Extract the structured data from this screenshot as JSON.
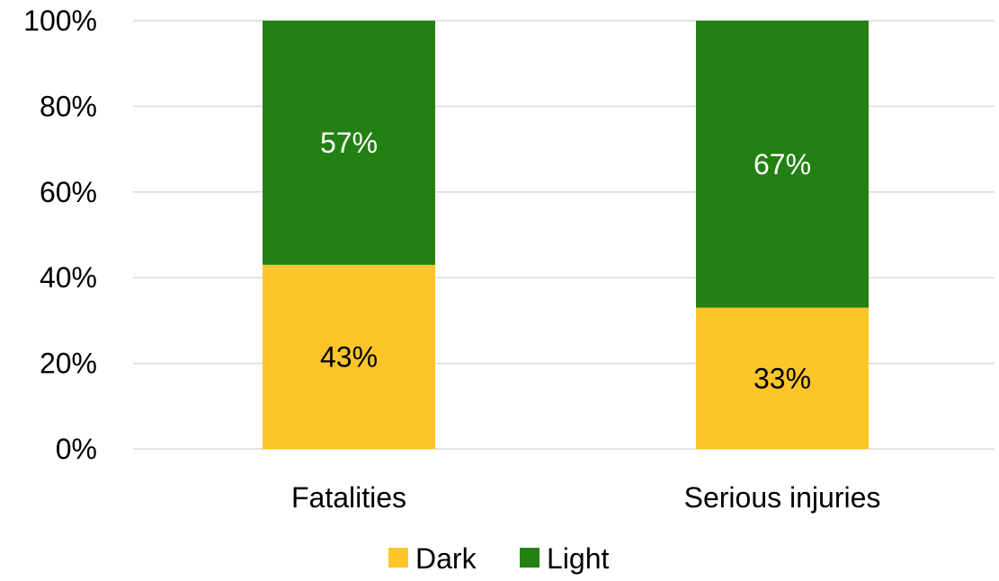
{
  "chart_data": {
    "type": "bar",
    "stacked": true,
    "percent_stacked": true,
    "categories": [
      "Fatalities",
      "Serious injuries"
    ],
    "series": [
      {
        "name": "Dark",
        "values": [
          43,
          33
        ],
        "labels": [
          "43%",
          "33%"
        ],
        "color": "#FDC52A",
        "label_color": "#000000"
      },
      {
        "name": "Light",
        "values": [
          57,
          67
        ],
        "labels": [
          "57%",
          "67%"
        ],
        "color": "#238013",
        "label_color": "#ffffff"
      }
    ],
    "ylim": [
      0,
      100
    ],
    "yticks": [
      0,
      20,
      40,
      60,
      80,
      100
    ],
    "ytick_labels": [
      "0%",
      "20%",
      "40%",
      "60%",
      "80%",
      "100%"
    ],
    "grid": true,
    "legend_position": "bottom"
  }
}
